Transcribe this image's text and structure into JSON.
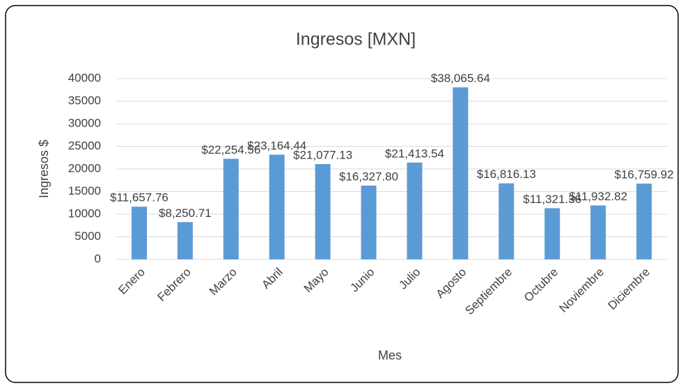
{
  "chart_data": {
    "type": "bar",
    "title": "Ingresos [MXN]",
    "x_label": "Mes",
    "y_label": "Ingresos $",
    "categories": [
      "Enero",
      "Febrero",
      "Marzo",
      "Abril",
      "Mayo",
      "Junio",
      "Julio",
      "Agosto",
      "Septiembre",
      "Octubre",
      "Noviembre",
      "Diciembre"
    ],
    "values": [
      11657.76,
      8250.71,
      22254.56,
      23164.44,
      21077.13,
      16327.8,
      21413.54,
      38065.64,
      16816.13,
      11321.36,
      11932.82,
      16759.92
    ],
    "value_labels": [
      "$11,657.76",
      "$8,250.71",
      "$22,254.56",
      "$23,164.44",
      "$21,077.13",
      "$16,327.80",
      "$21,413.54",
      "$38,065.64",
      "$16,816.13",
      "$11,321.36",
      "$11,932.82",
      "$16,759.92"
    ],
    "color": "#5b9bd5",
    "ylim": [
      0,
      40000
    ],
    "yticks": [
      0,
      5000,
      10000,
      15000,
      20000,
      25000,
      30000,
      35000,
      40000
    ],
    "grid": true
  }
}
